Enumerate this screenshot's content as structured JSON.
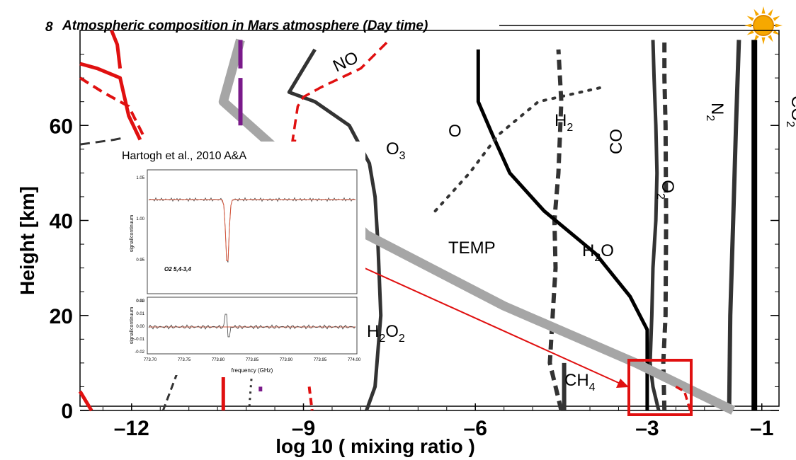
{
  "title": "Atmospheric composition in Mars atmosphere (Day time)",
  "title_prefix": "8",
  "colors": {
    "red": "#e01010",
    "black": "#000000",
    "dark": "#333333",
    "gray": "#a6a6a6",
    "purple": "#7a1a8a",
    "sun": "#f6a800"
  },
  "chart_data": {
    "type": "line",
    "title": "Atmospheric composition in Mars atmosphere (Day time)",
    "xlabel": "log 10 ( mixing ratio )",
    "ylabel": "Height [km]",
    "xlim": [
      -12.9,
      -0.7
    ],
    "ylim": [
      -1,
      80
    ],
    "x_ticks": [
      -12,
      -9,
      -6,
      -3,
      -1
    ],
    "x_tick_labels": [
      "–12",
      "–9",
      "–6",
      "–3",
      "–1"
    ],
    "y_ticks": [
      0,
      20,
      40,
      60
    ],
    "y_tick_labels": [
      "0",
      "20",
      "40",
      "60"
    ],
    "grid": false,
    "series": [
      {
        "name": "CO2",
        "label": "CO",
        "label_sub": "2",
        "color": "#000000",
        "style": "solid",
        "x": [
          -1.13,
          -1.13
        ],
        "y": [
          0,
          78
        ]
      },
      {
        "name": "N2",
        "label": "N",
        "label_sub": "2",
        "color": "#333333",
        "style": "solid",
        "x": [
          -1.57,
          -1.55,
          -1.5,
          -1.45,
          -1.4
        ],
        "y": [
          0,
          20,
          40,
          60,
          78
        ]
      },
      {
        "name": "CO",
        "label": "CO",
        "label_sub": "",
        "color": "#333333",
        "style": "solid",
        "x": [
          -2.8,
          -2.9,
          -2.95,
          -2.92,
          -2.9,
          -2.85,
          -2.83,
          -2.85,
          -2.88,
          -2.9
        ],
        "y": [
          0,
          5,
          10,
          20,
          30,
          40,
          50,
          60,
          70,
          78
        ]
      },
      {
        "name": "O2",
        "label": "O",
        "label_sub": "2",
        "color": "#333333",
        "style": "dashed",
        "x": [
          -2.7,
          -2.72,
          -2.68,
          -2.67,
          -2.68,
          -2.7,
          -2.7
        ],
        "y": [
          0,
          10,
          20,
          40,
          60,
          70,
          78
        ]
      },
      {
        "name": "H2",
        "label": "H",
        "label_sub": "2",
        "color": "#333333",
        "style": "dashed",
        "x": [
          -4.5,
          -4.7,
          -4.65,
          -4.6,
          -4.62,
          -4.55,
          -4.5,
          -4.55
        ],
        "y": [
          0,
          10,
          20,
          30,
          40,
          50,
          65,
          76
        ]
      },
      {
        "name": "H2O",
        "label": "H",
        "label_sub": "2",
        "label_post": "O",
        "color": "#000000",
        "style": "solid",
        "x": [
          -3.0,
          -3.0,
          -3.0,
          -3.3,
          -3.9,
          -4.8,
          -5.4,
          -5.7,
          -5.95,
          -5.95
        ],
        "y": [
          0,
          10,
          17,
          24,
          33,
          42,
          50,
          58,
          65,
          76
        ]
      },
      {
        "name": "O",
        "label": "O",
        "label_sub": "",
        "color": "#333333",
        "style": "dotted",
        "x": [
          -6.7,
          -6.1,
          -5.6,
          -4.9,
          -3.8
        ],
        "y": [
          42,
          50,
          58,
          65,
          68
        ]
      },
      {
        "name": "O3",
        "label": "O",
        "label_sub": "3",
        "color": "#333333",
        "style": "solid",
        "x": [
          -7.9,
          -7.75,
          -7.65,
          -7.7,
          -7.75,
          -7.85,
          -8.2,
          -8.8,
          -9.25,
          -9.0,
          -8.8
        ],
        "y": [
          0,
          5,
          20,
          35,
          45,
          52,
          60,
          65,
          67,
          72,
          76
        ]
      },
      {
        "name": "TEMP",
        "label": "TEMP",
        "label_sub": "",
        "color": "#a6a6a6",
        "style": "solid",
        "x": [
          -1.5,
          -3.2,
          -5.5,
          -7.9,
          -9.1,
          -10.4,
          -10.1
        ],
        "y": [
          0,
          10,
          22,
          37,
          51,
          65,
          78
        ]
      },
      {
        "name": "NO",
        "label": "NO",
        "label_sub": "",
        "color": "#e01010",
        "style": "dashed",
        "x": [
          -9.2,
          -9.1,
          -9.0,
          -8.7,
          -8.0,
          -7.5
        ],
        "y": [
          56,
          64,
          66,
          68,
          72,
          78
        ]
      },
      {
        "name": "H2O2",
        "label": "H",
        "label_sub": "2",
        "label_post": "O",
        "label_sub2": "2",
        "color": "#000000",
        "style": "none",
        "x": [],
        "y": []
      },
      {
        "name": "CH4",
        "label": "CH",
        "label_sub": "4",
        "color": "#333333",
        "style": "solid",
        "x": [
          -4.45,
          -4.45
        ],
        "y": [
          0,
          10
        ]
      }
    ]
  },
  "inset": {
    "caption": "Hartogh et al., 2010 A&A",
    "line_label": "O2  5,4-3,4",
    "xlabel": "frequency (GHz)",
    "ylabel_top": "signal/continuum",
    "ylabel_bottom": "signal/continuum",
    "top_ticks": [
      "1.05",
      "1.00",
      "0.95",
      "0.90"
    ],
    "bottom_ticks": [
      "0.02",
      "0.01",
      "0.00",
      "-0.01",
      "-0.02"
    ],
    "x_ticks": [
      "773.70",
      "773.75",
      "773.80",
      "773.85",
      "773.90",
      "773.95",
      "774.00"
    ]
  }
}
